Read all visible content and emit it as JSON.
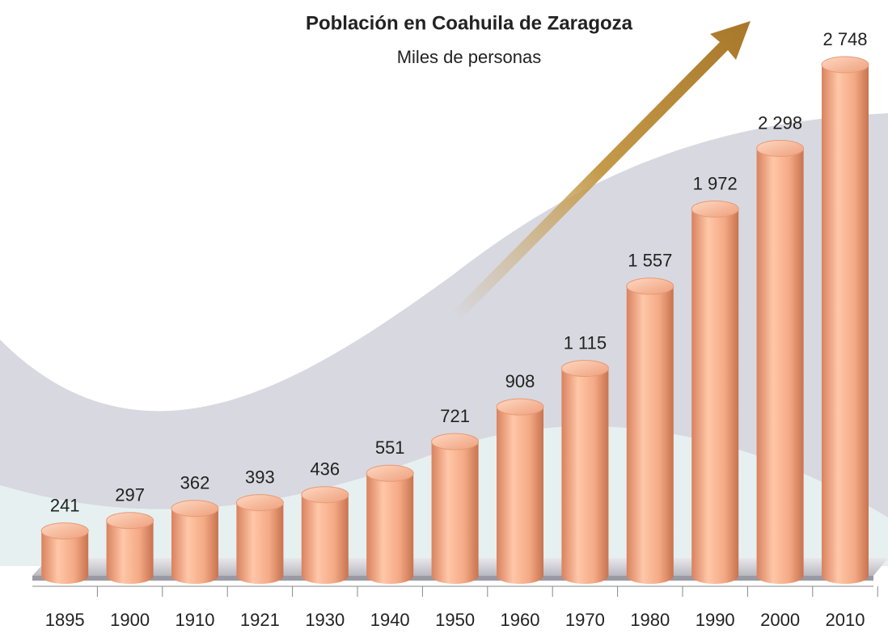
{
  "chart_data": {
    "type": "bar",
    "title": "Población en Coahuila de Zaragoza",
    "subtitle": "Miles de personas",
    "categories": [
      "1895",
      "1900",
      "1910",
      "1921",
      "1930",
      "1940",
      "1950",
      "1960",
      "1970",
      "1980",
      "1990",
      "2000",
      "2010"
    ],
    "values": [
      241,
      297,
      362,
      393,
      436,
      551,
      721,
      908,
      1115,
      1557,
      1972,
      2298,
      2748
    ],
    "value_labels": [
      "241",
      "297",
      "362",
      "393",
      "436",
      "551",
      "721",
      "908",
      "1 115",
      "1 557",
      "1 972",
      "2 298",
      "2 748"
    ],
    "color": "#f4a985"
  }
}
